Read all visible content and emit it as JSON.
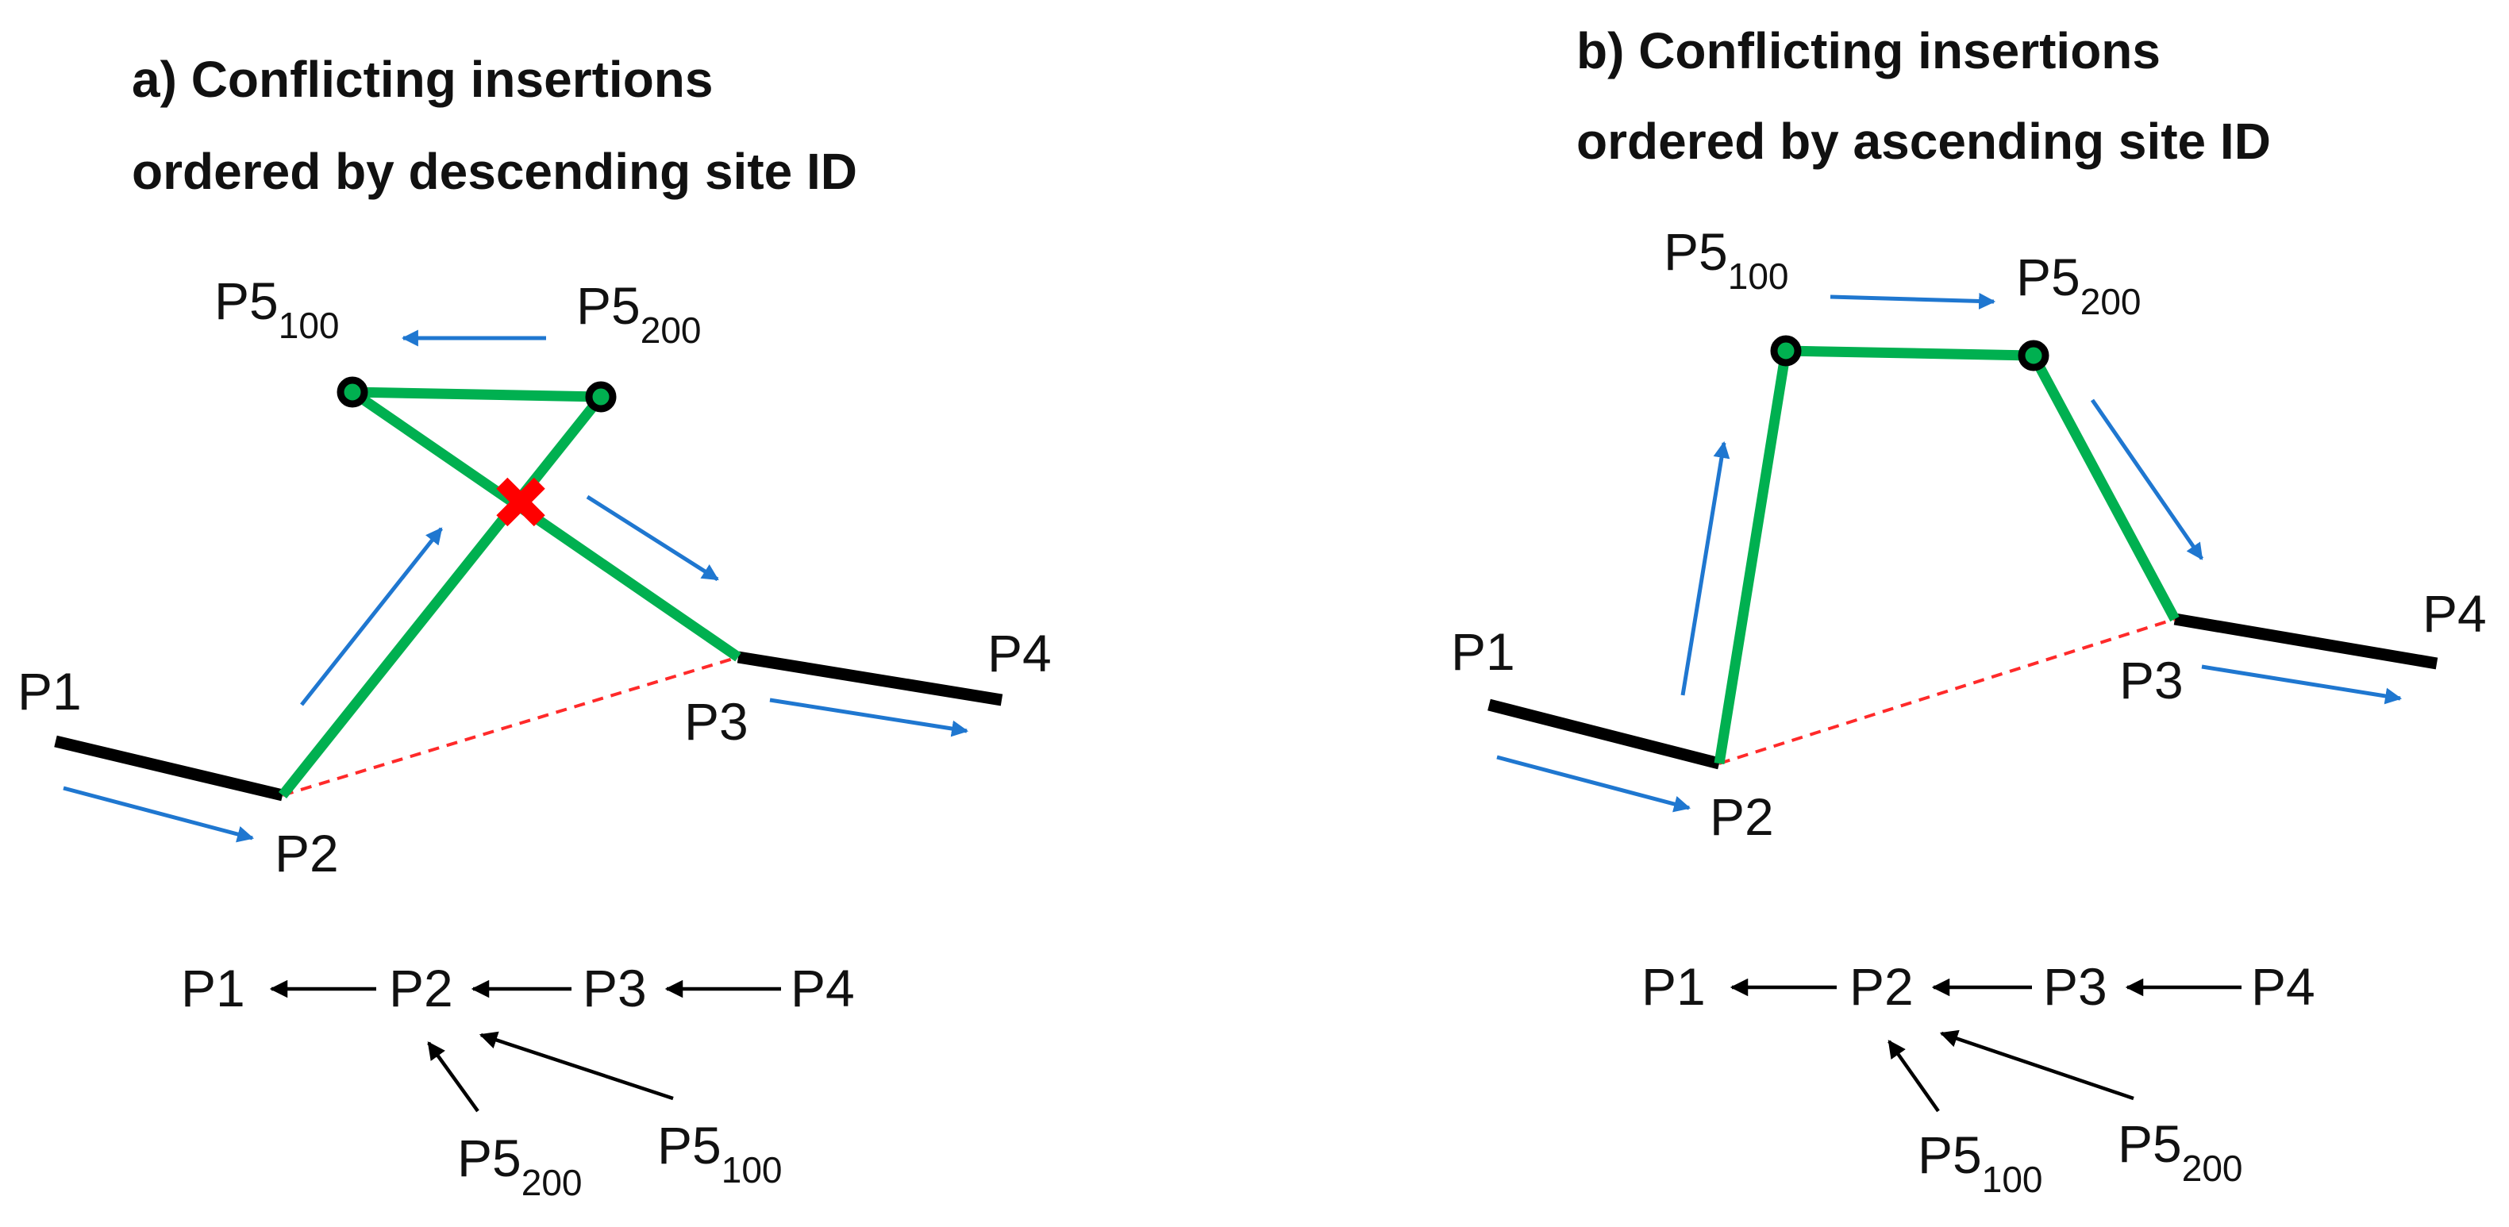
{
  "panel_a": {
    "title_line1": "a) Conflicting insertions",
    "title_line2": "ordered by descending site ID",
    "labels": {
      "p1": "P1",
      "p2": "P2",
      "p3": "P3",
      "p4": "P4",
      "p5_left": "P5",
      "p5_left_sub": "100",
      "p5_right": "P5",
      "p5_right_sub": "200"
    },
    "conflict_marker": "✖",
    "tree": {
      "p1": "P1",
      "p2": "P2",
      "p3": "P3",
      "p4": "P4",
      "child_near": "P5",
      "child_near_sub": "200",
      "child_far": "P5",
      "child_far_sub": "100"
    }
  },
  "panel_b": {
    "title_line1": "b) Conflicting insertions",
    "title_line2": "ordered by ascending site ID",
    "labels": {
      "p1": "P1",
      "p2": "P2",
      "p3": "P3",
      "p4": "P4",
      "p5_left": "P5",
      "p5_left_sub": "100",
      "p5_right": "P5",
      "p5_right_sub": "200"
    },
    "tree": {
      "p1": "P1",
      "p2": "P2",
      "p3": "P3",
      "p4": "P4",
      "child_near": "P5",
      "child_near_sub": "100",
      "child_far": "P5",
      "child_far_sub": "200"
    }
  },
  "colors": {
    "segment": "#000000",
    "insertion_path": "#00b050",
    "direction_arrow": "#1f77d0",
    "gap_line": "#ff2a2a",
    "conflict": "#ff0000",
    "tree_arrow": "#000000"
  }
}
